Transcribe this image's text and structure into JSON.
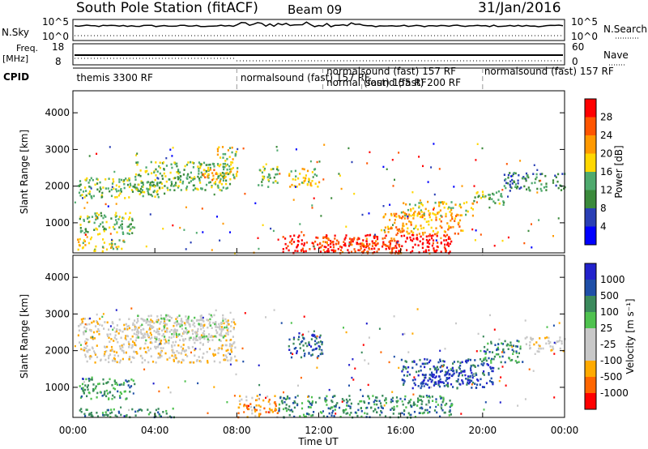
{
  "header": {
    "title": "South Pole Station (fitACF)",
    "beam": "Beam 09",
    "date": "31/Jan/2016"
  },
  "aux_panels": {
    "nsky_label": "N.Sky",
    "nsearch_label": "N.Search",
    "nsky_ticks": [
      "10^5",
      "10^0"
    ],
    "freq_label_1": "Freq.",
    "freq_label_2": "[MHz]",
    "freq_ticks": [
      "18",
      "8"
    ],
    "nave_label": "Nave",
    "nave_ticks": [
      "60",
      "0"
    ],
    "cpid_label": "CPID",
    "cpid_entries": [
      {
        "text": "themis 3300 RF",
        "start_hour": 0.1
      },
      {
        "text": "normalsound (fast) 157 RF",
        "start_hour": 8.1
      },
      {
        "text": "normalsound (fast) 157 RF",
        "start_hour": 12.3
      },
      {
        "text": "normal (fast) 155 RF",
        "start_hour": 12.3
      },
      {
        "text": "sound (fast) 200 RF",
        "start_hour": 14.2
      },
      {
        "text": "normalsound (fast) 157 RF",
        "start_hour": 20.0
      }
    ],
    "mode_changes_hours": [
      8.0,
      12.2,
      14.1,
      20.0
    ]
  },
  "colors": {
    "power": [
      "#0000ff",
      "#2a3fb5",
      "#3b8a3b",
      "#4faa6e",
      "#ffd700",
      "#ff9900",
      "#ff5500",
      "#ff0000"
    ],
    "velocity": [
      "#ff0000",
      "#ff6600",
      "#ffaa00",
      "#c8c8c8",
      "#c8c8c8",
      "#4fc24f",
      "#3b8a5c",
      "#1f4fa8",
      "#2222cc"
    ],
    "ground": "#bbbbbb"
  },
  "chart_data": [
    {
      "type": "heatmap",
      "name": "Power",
      "ylabel": "Slant Range [km]",
      "yticks": [
        "1000",
        "2000",
        "3000",
        "4000"
      ],
      "ylim": [
        180,
        4600
      ],
      "xlim_hours": [
        0,
        24
      ],
      "colorbar_label": "Power [dB]",
      "colorbar_ticks": [
        "4",
        "8",
        "12",
        "16",
        "20",
        "24",
        "28"
      ],
      "colorbar_range": [
        0,
        32
      ],
      "regions": [
        {
          "t0": 0.2,
          "t1": 4.5,
          "r0": 1700,
          "r1": 2250,
          "level": 3
        },
        {
          "t0": 3.0,
          "t1": 7.8,
          "r0": 1900,
          "r1": 2700,
          "level": 3
        },
        {
          "t0": 6.3,
          "t1": 7.2,
          "r0": 2100,
          "r1": 2500,
          "level": 5
        },
        {
          "t0": 7.0,
          "t1": 8.0,
          "r0": 2200,
          "r1": 3100,
          "level": 4
        },
        {
          "t0": 0.3,
          "t1": 3.0,
          "r0": 700,
          "r1": 1300,
          "level": 3
        },
        {
          "t0": 0.2,
          "t1": 2.5,
          "r0": 250,
          "r1": 600,
          "level": 4
        },
        {
          "t0": 9.0,
          "t1": 10.0,
          "r0": 2000,
          "r1": 2600,
          "level": 3
        },
        {
          "t0": 10.5,
          "t1": 12.0,
          "r0": 2000,
          "r1": 2500,
          "level": 4
        },
        {
          "t0": 10.2,
          "t1": 18.5,
          "r0": 200,
          "r1": 700,
          "level": 7
        },
        {
          "t0": 12.0,
          "t1": 16.0,
          "r0": 200,
          "r1": 600,
          "level": 6
        },
        {
          "t0": 15.0,
          "t1": 19.0,
          "r0": 700,
          "r1": 1300,
          "level": 5
        },
        {
          "t0": 16.0,
          "t1": 19.5,
          "r0": 1200,
          "r1": 1600,
          "level": 4
        },
        {
          "t0": 19.5,
          "t1": 21.0,
          "r0": 1500,
          "r1": 1900,
          "level": 3
        },
        {
          "t0": 21.0,
          "t1": 24.0,
          "r0": 1900,
          "r1": 2400,
          "level": 2
        }
      ]
    },
    {
      "type": "heatmap",
      "name": "Velocity",
      "ylabel": "Slant Range [km]",
      "yticks": [
        "1000",
        "2000",
        "3000",
        "4000"
      ],
      "ylim": [
        180,
        4600
      ],
      "xlim_hours": [
        0,
        24
      ],
      "colorbar_label": "Velocity [m s⁻¹]",
      "colorbar_ticks": [
        "1000",
        "500",
        "100",
        "25",
        "-25",
        "-100",
        "-500",
        "-1000"
      ],
      "regions": [
        {
          "t0": 0.2,
          "t1": 8.0,
          "r0": 1700,
          "r1": 2900,
          "level": 3
        },
        {
          "t0": 3.0,
          "t1": 7.5,
          "r0": 2300,
          "r1": 3000,
          "level": 4
        },
        {
          "t0": 0.3,
          "t1": 3.0,
          "r0": 700,
          "r1": 1300,
          "level": 6
        },
        {
          "t0": 0.2,
          "t1": 5.0,
          "r0": 200,
          "r1": 450,
          "level": 6
        },
        {
          "t0": 8.0,
          "t1": 10.0,
          "r0": 200,
          "r1": 800,
          "level": 2
        },
        {
          "t0": 10.5,
          "t1": 12.2,
          "r0": 1800,
          "r1": 2500,
          "level": 7
        },
        {
          "t0": 10.0,
          "t1": 18.5,
          "r0": 200,
          "r1": 800,
          "level": 6
        },
        {
          "t0": 16.0,
          "t1": 20.5,
          "r0": 1000,
          "r1": 1800,
          "level": 7
        },
        {
          "t0": 17.0,
          "t1": 19.5,
          "r0": 1100,
          "r1": 1500,
          "level": 8
        },
        {
          "t0": 20.0,
          "t1": 22.0,
          "r0": 1700,
          "r1": 2300,
          "level": 6
        },
        {
          "t0": 22.0,
          "t1": 24.0,
          "r0": 2000,
          "r1": 2400,
          "level": 3
        }
      ]
    }
  ],
  "xaxis": {
    "label": "Time UT",
    "ticks": [
      "00:00",
      "04:00",
      "08:00",
      "12:00",
      "16:00",
      "20:00",
      "00:00"
    ]
  }
}
